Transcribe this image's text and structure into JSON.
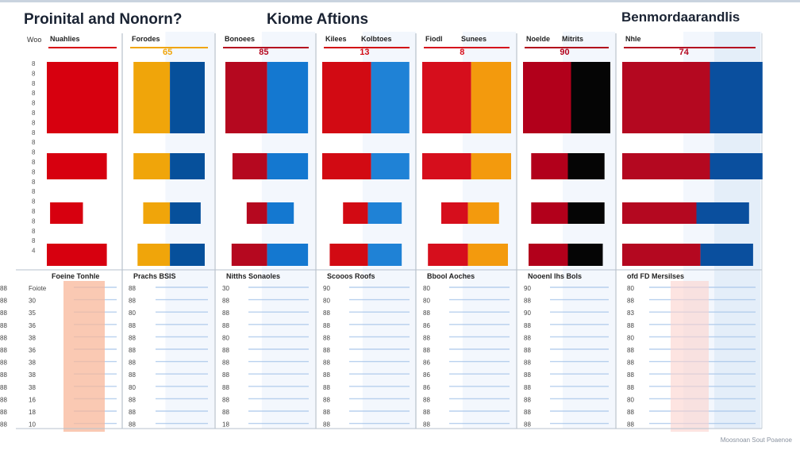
{
  "titles": {
    "left": "Proinital and Nonorn?",
    "middle": "Kiome Aftions",
    "right": "Benmordaarandlis"
  },
  "footer": "Moosnoan Sout Poaenoe",
  "chart_data": {
    "type": "bar",
    "panels": [
      {
        "id": "p0",
        "header": [
          "Nuahlies"
        ],
        "value": "",
        "colors": [
          "#d7000f",
          "#d7000f"
        ],
        "bars": [
          [
            1.0,
            0
          ],
          [
            0.84,
            0
          ],
          [
            0.46,
            0
          ],
          [
            0.84,
            0
          ]
        ],
        "table_header": "Foeine Tonhle"
      },
      {
        "id": "p1",
        "header": [
          "Forodes"
        ],
        "value": "65",
        "colors": [
          "#f0a50a",
          "#06509b"
        ],
        "bars": [
          [
            0.45,
            0.43
          ],
          [
            0.45,
            0.43
          ],
          [
            0.33,
            0.38
          ],
          [
            0.4,
            0.43
          ]
        ],
        "table_header": "Prachs BSIS"
      },
      {
        "id": "p2",
        "header": [
          "Bonoees"
        ],
        "value": "85",
        "colors": [
          "#b5081f",
          "#1478d0"
        ],
        "bars": [
          [
            0.47,
            0.46
          ],
          [
            0.39,
            0.46
          ],
          [
            0.23,
            0.3
          ],
          [
            0.4,
            0.46
          ]
        ],
        "table_header": "Nitths Sonaoles"
      },
      {
        "id": "p3",
        "header": [
          "Kilees",
          "Kolbtoes"
        ],
        "value": "13",
        "colors": [
          "#d20a13",
          "#1f82d6"
        ],
        "bars": [
          [
            0.55,
            0.43
          ],
          [
            0.55,
            0.43
          ],
          [
            0.28,
            0.38
          ],
          [
            0.43,
            0.38
          ]
        ],
        "table_header": "Scooos Roofs"
      },
      {
        "id": "p4",
        "header": [
          "Fiodl",
          "Sunees"
        ],
        "value": "8",
        "colors": [
          "#d60e1c",
          "#f39a0d"
        ],
        "bars": [
          [
            0.55,
            0.45
          ],
          [
            0.55,
            0.45
          ],
          [
            0.3,
            0.35
          ],
          [
            0.45,
            0.45
          ]
        ],
        "table_header": "Bbool Aoches"
      },
      {
        "id": "p5",
        "header": [
          "Noelde",
          "Mitrits"
        ],
        "value": "90",
        "colors": [
          "#b2001b",
          "#050505"
        ],
        "bars": [
          [
            0.55,
            0.45
          ],
          [
            0.42,
            0.42
          ],
          [
            0.42,
            0.42
          ],
          [
            0.45,
            0.4
          ]
        ],
        "table_header": "Nooenl lhs Bols"
      },
      {
        "id": "p6",
        "header": [
          "Nhle"
        ],
        "value": "74",
        "colors": [
          "#b40820",
          "#0a4f9e"
        ],
        "bars": [
          [
            0.65,
            0.39
          ],
          [
            0.65,
            0.39
          ],
          [
            0.55,
            0.39
          ],
          [
            0.58,
            0.39
          ]
        ],
        "table_header": "ofd FD Mersilses"
      }
    ],
    "y_ticks_header": "Woo",
    "y_ticks": [
      "8",
      "8",
      "8",
      "8",
      "8",
      "8",
      "8",
      "8",
      "8",
      "8",
      "8",
      "8",
      "8",
      "8",
      "8",
      "8",
      "8",
      "8",
      "8",
      "4"
    ],
    "table_rows": [
      [
        "Foiote",
        "88",
        "30",
        "90",
        "80",
        "90",
        "80",
        "88"
      ],
      [
        "30",
        "88",
        "88",
        "80",
        "80",
        "88",
        "88",
        "88"
      ],
      [
        "35",
        "80",
        "88",
        "88",
        "88",
        "90",
        "83",
        "88"
      ],
      [
        "36",
        "88",
        "88",
        "88",
        "86",
        "88",
        "88",
        "88"
      ],
      [
        "38",
        "88",
        "80",
        "88",
        "88",
        "88",
        "80",
        "88"
      ],
      [
        "36",
        "88",
        "88",
        "88",
        "88",
        "88",
        "88",
        "88"
      ],
      [
        "38",
        "88",
        "88",
        "88",
        "86",
        "88",
        "88",
        "88"
      ],
      [
        "38",
        "88",
        "88",
        "88",
        "86",
        "88",
        "88",
        "88"
      ],
      [
        "38",
        "80",
        "88",
        "88",
        "86",
        "88",
        "88",
        "88"
      ],
      [
        "16",
        "88",
        "88",
        "88",
        "88",
        "88",
        "80",
        "88"
      ],
      [
        "18",
        "88",
        "88",
        "88",
        "88",
        "88",
        "88",
        "88"
      ],
      [
        "10",
        "88",
        "18",
        "88",
        "88",
        "88",
        "88",
        "88"
      ]
    ],
    "legend_colors": [
      "#d7000f",
      "#f0a50a",
      "#06509b",
      "#1478d0",
      "#050505"
    ]
  }
}
